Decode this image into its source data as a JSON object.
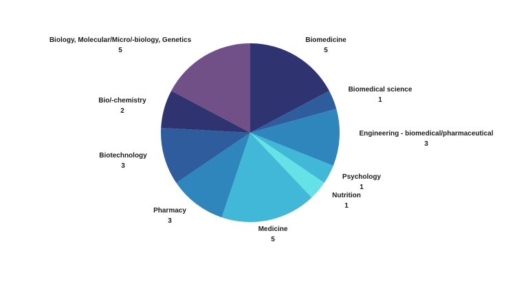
{
  "chart_data": {
    "type": "pie",
    "title": "",
    "slices": [
      {
        "label": "Biomedicine",
        "value": 5,
        "color": "#2f3470"
      },
      {
        "label": "Biomedical science",
        "value": 1,
        "color": "#2f5c9c"
      },
      {
        "label": "Engineering - biomedical/pharmaceutical",
        "value": 3,
        "color": "#2e86bd"
      },
      {
        "label": "Psychology",
        "value": 1,
        "color": "#42b8d9"
      },
      {
        "label": "Nutrition",
        "value": 1,
        "color": "#64e2e6"
      },
      {
        "label": "Medicine",
        "value": 5,
        "color": "#42b8d9"
      },
      {
        "label": "Pharmacy",
        "value": 3,
        "color": "#2e86bd"
      },
      {
        "label": "Biotechnology",
        "value": 3,
        "color": "#2f5c9c"
      },
      {
        "label": "Bio/-chemistry",
        "value": 2,
        "color": "#2f3470"
      },
      {
        "label": "Biology, Molecular/Micro/-biology, Genetics",
        "value": 5,
        "color": "#714f87"
      }
    ]
  }
}
